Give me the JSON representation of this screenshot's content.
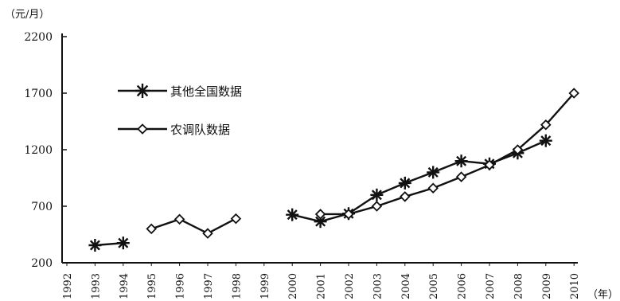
{
  "chart_data": {
    "type": "line",
    "title": "",
    "ylabel": "（元/月）",
    "xlabel": "（年）",
    "ylim": [
      200,
      2200
    ],
    "yticks": [
      200,
      700,
      1200,
      1700,
      2200
    ],
    "xlim": [
      1992,
      2010
    ],
    "xticks": [
      "1992",
      "1993",
      "1994",
      "1995",
      "1996",
      "1997",
      "1998",
      "1999",
      "2000",
      "2001",
      "2002",
      "2003",
      "2004",
      "2005",
      "2006",
      "2007",
      "2008",
      "2009",
      "2010"
    ],
    "grid": false,
    "legend_position": "top-left",
    "series": [
      {
        "name": "其他全国数据",
        "marker": "asterisk",
        "segments": [
          [
            [
              1993,
              355
            ],
            [
              1994,
              375
            ]
          ],
          [
            [
              2000,
              625
            ],
            [
              2001,
              565
            ],
            [
              2002,
              635
            ],
            [
              2003,
              800
            ],
            [
              2004,
              905
            ],
            [
              2005,
              1000
            ],
            [
              2006,
              1100
            ],
            [
              2007,
              1075
            ],
            [
              2008,
              1170
            ],
            [
              2009,
              1280
            ]
          ]
        ]
      },
      {
        "name": "农调队数据",
        "marker": "diamond",
        "segments": [
          [
            [
              1995,
              500
            ],
            [
              1996,
              585
            ],
            [
              1997,
              460
            ],
            [
              1998,
              590
            ]
          ],
          [
            [
              2001,
              630
            ],
            [
              2002,
              630
            ],
            [
              2003,
              700
            ],
            [
              2004,
              785
            ],
            [
              2005,
              860
            ],
            [
              2006,
              960
            ],
            [
              2007,
              1065
            ],
            [
              2008,
              1200
            ],
            [
              2009,
              1420
            ],
            [
              2010,
              1700
            ]
          ]
        ]
      }
    ]
  }
}
